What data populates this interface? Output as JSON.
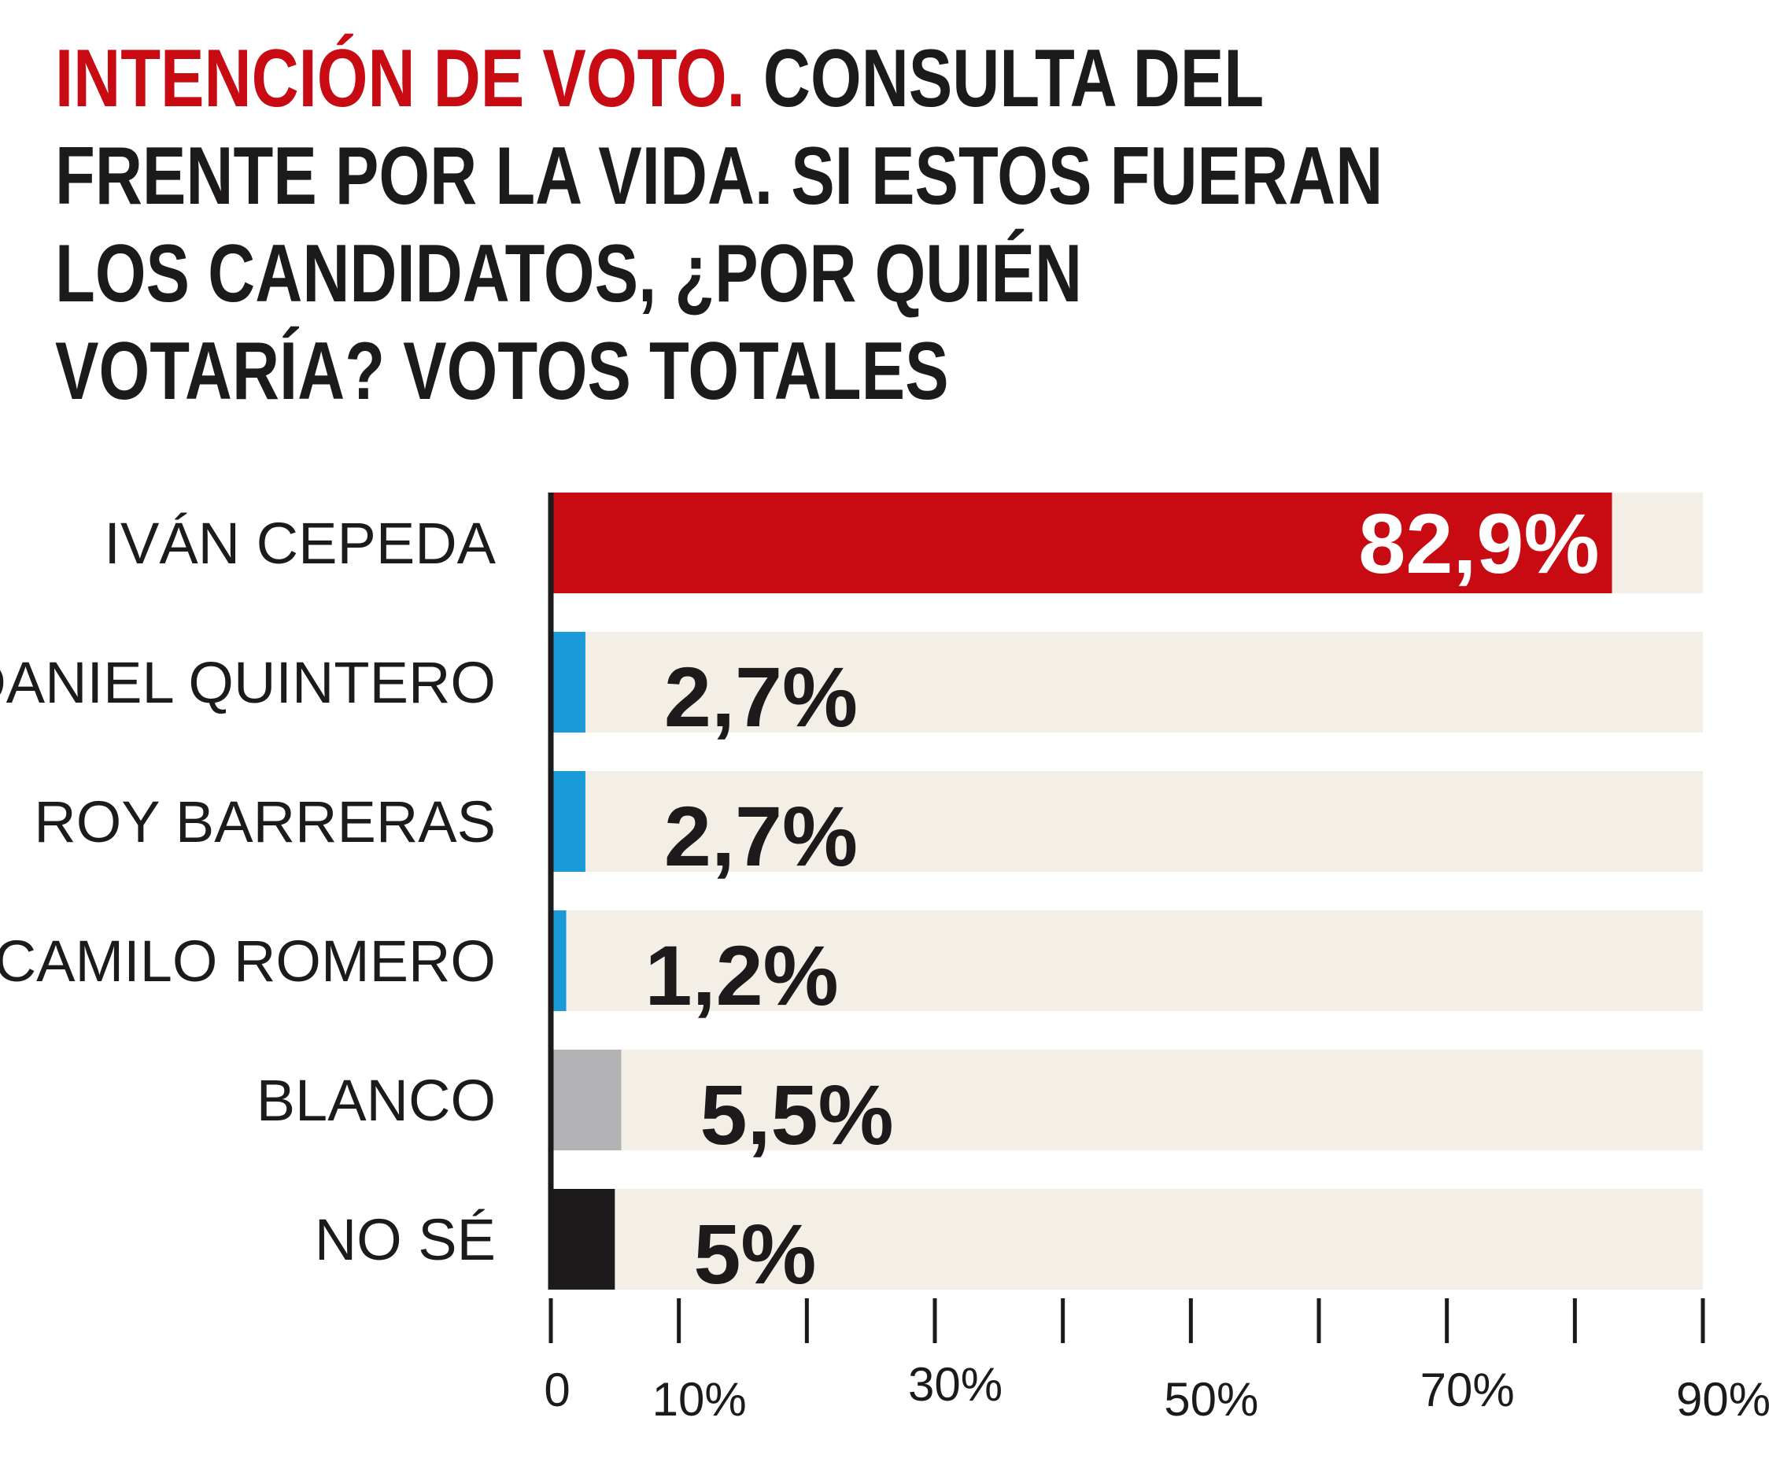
{
  "title": {
    "highlight": "INTENCIÓN DE VOTO.",
    "rest": "CONSULTA DEL FRENTE POR LA VIDA. SI ESTOS FUERAN LOS CANDIDATOS, ¿POR QUIÉN VOTARÍA? VOTOS TOTALES"
  },
  "chart_data": {
    "type": "bar",
    "orientation": "horizontal",
    "title": "INTENCIÓN DE VOTO. CONSULTA DEL FRENTE POR LA VIDA. SI ESTOS FUERAN LOS CANDIDATOS, ¿POR QUIÉN VOTARÍA? VOTOS TOTALES",
    "xlim": [
      0,
      90
    ],
    "ticks": [
      0,
      10,
      20,
      30,
      40,
      50,
      60,
      70,
      80,
      90
    ],
    "tick_labels": [
      {
        "value": 0,
        "label": "0"
      },
      {
        "value": 10,
        "label": "10%"
      },
      {
        "value": 30,
        "label": "30%"
      },
      {
        "value": 50,
        "label": "50%"
      },
      {
        "value": 70,
        "label": "70%"
      },
      {
        "value": 90,
        "label": "90%"
      }
    ],
    "categories": [
      "IVÁN CEPEDA",
      "DANIEL QUINTERO",
      "ROY BARRERAS",
      "CAMILO ROMERO",
      "BLANCO",
      "NO SÉ"
    ],
    "values": [
      82.9,
      2.7,
      2.7,
      1.2,
      5.5,
      5
    ],
    "value_labels": [
      "82,9%",
      "2,7%",
      "2,7%",
      "1,2%",
      "5,5%",
      "5%"
    ],
    "colors": [
      "#c80a12",
      "#1a9ad7",
      "#1a9ad7",
      "#1a9ad7",
      "#b3b3b6",
      "#1c1a1a"
    ],
    "track_color": "#f3efe7",
    "axis_color": "#1c1a1a"
  }
}
